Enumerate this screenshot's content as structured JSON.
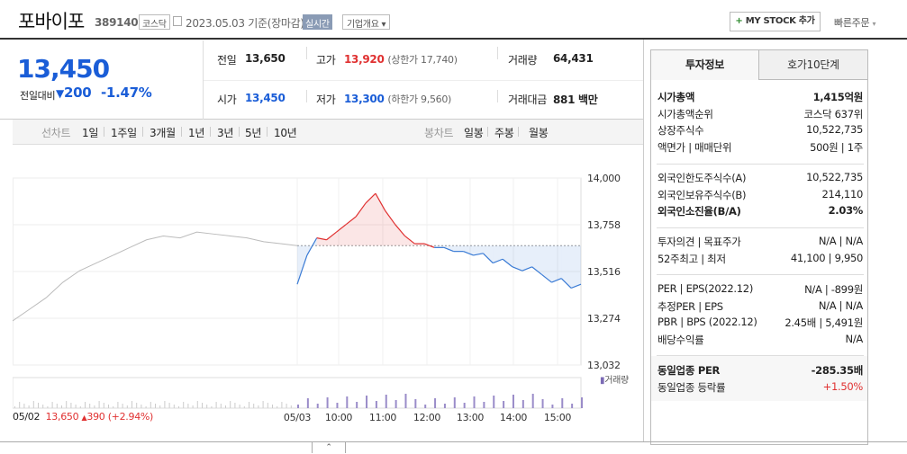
{
  "header": {
    "stock_name": "포바이포",
    "stock_code": "389140",
    "market_badge": "코스닥",
    "date_text": "2023.05.03  기준(장마감)",
    "realtime_badge": "실시간",
    "company_overview": "기업개요",
    "mystock_label": "MY STOCK 추가",
    "quick_order": "빠른주문"
  },
  "price": {
    "current": "13,450",
    "prev_compare_label": "전일대비",
    "change_amount": "200",
    "change_rate": "-1.47%"
  },
  "stats": {
    "prev_close_label": "전일",
    "prev_close": "13,650",
    "high_label": "고가",
    "high": "13,920",
    "upper_limit": "(상한가 17,740)",
    "volume_label": "거래량",
    "volume": "64,431",
    "open_label": "시가",
    "open": "13,450",
    "low_label": "저가",
    "low": "13,300",
    "lower_limit": "(하한가 9,560)",
    "amount_label": "거래대금",
    "amount": "881",
    "amount_unit": "백만"
  },
  "period_bar": {
    "line_chart": "선차트",
    "periods": [
      "1일",
      "1주일",
      "3개월",
      "1년",
      "3년",
      "5년",
      "10년"
    ],
    "candle_chart": "봉차트",
    "candles": [
      "일봉",
      "주봉",
      "월봉"
    ]
  },
  "chart_labels": {
    "volume_legend": "거래량",
    "prev_date": "05/02",
    "prev_price": "13,650",
    "prev_change": "390",
    "prev_rate": "(+2.94%)"
  },
  "chart_data": {
    "type": "line",
    "y_ticks": [
      "14,000",
      "13,758",
      "13,516",
      "13,274",
      "13,032"
    ],
    "ylim": [
      13032,
      14000
    ],
    "x_ticks": [
      "05/03",
      "10:00",
      "11:00",
      "12:00",
      "13:00",
      "14:00",
      "15:00"
    ],
    "reference_price": 13650,
    "series": [
      {
        "values": [
          13450,
          13600,
          13690,
          13680,
          13720,
          13760,
          13800,
          13870,
          13920,
          13830,
          13760,
          13700,
          13660,
          13660,
          13640,
          13640,
          13620,
          13620,
          13600,
          13610,
          13560,
          13580,
          13540,
          13520,
          13540,
          13500,
          13460,
          13480,
          13430,
          13450
        ]
      }
    ],
    "prev_day_values": [
      13260,
      13320,
      13380,
      13460,
      13520,
      13560,
      13600,
      13640,
      13680,
      13700,
      13690,
      13720,
      13710,
      13700,
      13690,
      13670,
      13660,
      13650
    ]
  },
  "invest_panel": {
    "tab_invest": "투자정보",
    "tab_hoga": "호가10단계",
    "rows_a": [
      {
        "label": "시가총액",
        "value": "1,415억원",
        "bold": true
      },
      {
        "label": "시가총액순위",
        "value": "코스닥 637위"
      },
      {
        "label": "상장주식수",
        "value": "10,522,735"
      },
      {
        "label": "액면가 | 매매단위",
        "value": "500원 | 1주"
      }
    ],
    "rows_b": [
      {
        "label": "외국인한도주식수(A)",
        "value": "10,522,735"
      },
      {
        "label": "외국인보유주식수(B)",
        "value": "214,110"
      },
      {
        "label": "외국인소진율(B/A)",
        "value": "2.03%",
        "bold": true
      }
    ],
    "rows_c": [
      {
        "label": "투자의견 | 목표주가",
        "value": "N/A | N/A"
      },
      {
        "label": "52주최고 | 최저",
        "value": "41,100 | 9,950"
      }
    ],
    "rows_d": [
      {
        "label": "PER | EPS(2022.12)",
        "value": "N/A | -899원"
      },
      {
        "label": "추정PER | EPS",
        "value": "N/A | N/A"
      },
      {
        "label": "PBR | BPS (2022.12)",
        "value": "2.45배 | 5,491원"
      },
      {
        "label": "배당수익률",
        "value": "N/A"
      }
    ],
    "rows_e": [
      {
        "label": "동일업종 PER",
        "value": "-285.35배",
        "bold": true
      },
      {
        "label": "동일업종 등락률",
        "value": "+1.50%",
        "red": true
      }
    ]
  }
}
